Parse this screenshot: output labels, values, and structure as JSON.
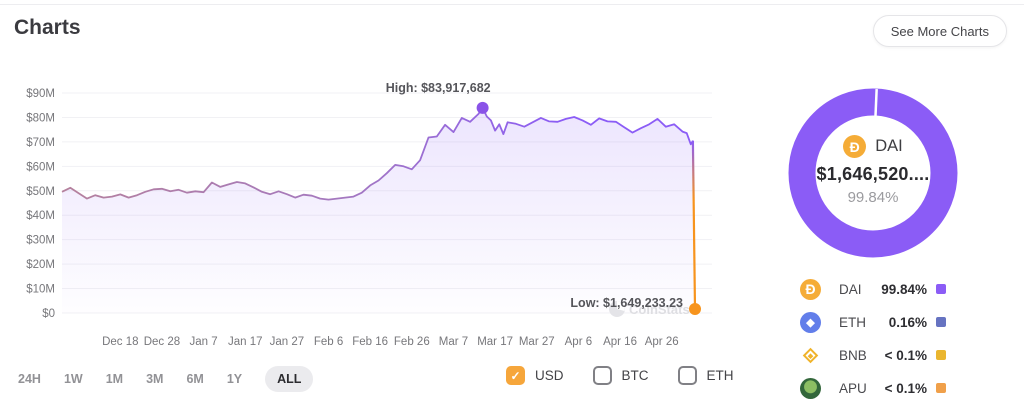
{
  "header": {
    "title": "Charts",
    "see_more_label": "See More Charts"
  },
  "icons": {
    "check": "✓",
    "dai": "Ð",
    "eth": "◆"
  },
  "controls": {
    "ranges": [
      {
        "label": "24H",
        "active": false
      },
      {
        "label": "1W",
        "active": false
      },
      {
        "label": "1M",
        "active": false
      },
      {
        "label": "3M",
        "active": false
      },
      {
        "label": "6M",
        "active": false
      },
      {
        "label": "1Y",
        "active": false
      },
      {
        "label": "ALL",
        "active": true
      }
    ],
    "currencies": [
      {
        "label": "USD",
        "checked": true
      },
      {
        "label": "BTC",
        "checked": false
      },
      {
        "label": "ETH",
        "checked": false
      }
    ]
  },
  "chart_data": [
    {
      "type": "area",
      "unit": "USD millions",
      "ylim": [
        0,
        90
      ],
      "x_max": 152,
      "y_ticks": [
        {
          "label": "$90M",
          "value": 90
        },
        {
          "label": "$80M",
          "value": 80
        },
        {
          "label": "$70M",
          "value": 70
        },
        {
          "label": "$60M",
          "value": 60
        },
        {
          "label": "$50M",
          "value": 50
        },
        {
          "label": "$40M",
          "value": 40
        },
        {
          "label": "$30M",
          "value": 30
        },
        {
          "label": "$20M",
          "value": 20
        },
        {
          "label": "$10M",
          "value": 10
        },
        {
          "label": "$0",
          "value": 0
        }
      ],
      "x_ticks": [
        {
          "label": "Dec 18",
          "day": 14
        },
        {
          "label": "Dec 28",
          "day": 24
        },
        {
          "label": "Jan 7",
          "day": 34
        },
        {
          "label": "Jan 17",
          "day": 44
        },
        {
          "label": "Jan 27",
          "day": 54
        },
        {
          "label": "Feb 6",
          "day": 64
        },
        {
          "label": "Feb 16",
          "day": 74
        },
        {
          "label": "Feb 26",
          "day": 84
        },
        {
          "label": "Mar 7",
          "day": 94
        },
        {
          "label": "Mar 17",
          "day": 104
        },
        {
          "label": "Mar 27",
          "day": 114
        },
        {
          "label": "Apr 6",
          "day": 124
        },
        {
          "label": "Apr 16",
          "day": 134
        },
        {
          "label": "Apr 26",
          "day": 144
        }
      ],
      "points": [
        [
          0,
          49.6
        ],
        [
          2,
          51.2
        ],
        [
          4,
          49.0
        ],
        [
          6,
          46.8
        ],
        [
          8,
          48.2
        ],
        [
          10,
          47.2
        ],
        [
          12,
          47.6
        ],
        [
          14,
          48.5
        ],
        [
          16,
          47.2
        ],
        [
          18,
          48.2
        ],
        [
          20,
          49.6
        ],
        [
          22,
          50.6
        ],
        [
          24,
          50.8
        ],
        [
          26,
          49.8
        ],
        [
          28,
          50.4
        ],
        [
          30,
          49.2
        ],
        [
          32,
          49.8
        ],
        [
          34,
          49.4
        ],
        [
          36,
          53.4
        ],
        [
          38,
          51.6
        ],
        [
          40,
          52.6
        ],
        [
          42,
          53.6
        ],
        [
          44,
          53.0
        ],
        [
          46,
          51.4
        ],
        [
          48,
          49.6
        ],
        [
          50,
          48.6
        ],
        [
          52,
          49.8
        ],
        [
          54,
          48.6
        ],
        [
          56,
          47.2
        ],
        [
          58,
          48.4
        ],
        [
          60,
          48.0
        ],
        [
          62,
          46.8
        ],
        [
          64,
          46.4
        ],
        [
          66,
          46.8
        ],
        [
          68,
          47.2
        ],
        [
          70,
          47.6
        ],
        [
          72,
          49.2
        ],
        [
          74,
          52.2
        ],
        [
          76,
          54.2
        ],
        [
          78,
          57.2
        ],
        [
          80,
          60.6
        ],
        [
          82,
          60.0
        ],
        [
          84,
          58.8
        ],
        [
          86,
          62.5
        ],
        [
          88,
          71.8
        ],
        [
          90,
          72.2
        ],
        [
          92,
          77.0
        ],
        [
          94,
          74.0
        ],
        [
          96,
          79.8
        ],
        [
          98,
          78.2
        ],
        [
          100,
          81.4
        ],
        [
          101,
          83.917682
        ],
        [
          102,
          80.4
        ],
        [
          103,
          78.8
        ],
        [
          104,
          74.6
        ],
        [
          105,
          77.2
        ],
        [
          106,
          73.2
        ],
        [
          107,
          78.0
        ],
        [
          109,
          77.4
        ],
        [
          111,
          76.2
        ],
        [
          113,
          78.0
        ],
        [
          115,
          79.8
        ],
        [
          117,
          78.4
        ],
        [
          119,
          78.2
        ],
        [
          121,
          79.4
        ],
        [
          123,
          80.2
        ],
        [
          125,
          78.8
        ],
        [
          127,
          77.0
        ],
        [
          129,
          79.6
        ],
        [
          131,
          78.4
        ],
        [
          133,
          78.2
        ],
        [
          135,
          76.0
        ],
        [
          137,
          73.8
        ],
        [
          139,
          75.6
        ],
        [
          141,
          77.2
        ],
        [
          143,
          79.4
        ],
        [
          145,
          76.2
        ],
        [
          147,
          77.2
        ],
        [
          149,
          74.2
        ],
        [
          150,
          73.6
        ],
        [
          151,
          69.0
        ],
        [
          151.5,
          70.5
        ],
        [
          152,
          1.649233
        ]
      ],
      "high": {
        "label": "High: $83,917,682",
        "value": 83.917682,
        "day": 101
      },
      "low": {
        "label": "Low: $1,649,233.23",
        "value": 1.649233,
        "day": 152
      },
      "watermark": "CoinStats",
      "colors": {
        "line_start": "#b5819d",
        "line_mid": "#a478c0",
        "line_end": "#8b5cf6",
        "drop": "#f7941d",
        "area": "#8b5cf6",
        "high_dot": "#8a53e8",
        "low_dot": "#f7941d",
        "grid": "#f1f1f4",
        "axis_text": "#77777b",
        "annotation_text": "#55555a",
        "watermark": "#dedee2"
      }
    },
    {
      "type": "pie",
      "labels": [
        "DAI",
        "ETH",
        "BNB",
        "APU"
      ],
      "values_percent": [
        99.84,
        0.16,
        0.05,
        0.05
      ],
      "display_percents": [
        "99.84%",
        "0.16%",
        "< 0.1%",
        "< 0.1%"
      ],
      "colors": [
        "#8b5cf6",
        "#6673c1",
        "#eab62f",
        "#f0a04a"
      ],
      "center": {
        "token": "DAI",
        "value": "$1,646,520....",
        "percent": "99.84%"
      },
      "legend_position": "bottom"
    }
  ]
}
